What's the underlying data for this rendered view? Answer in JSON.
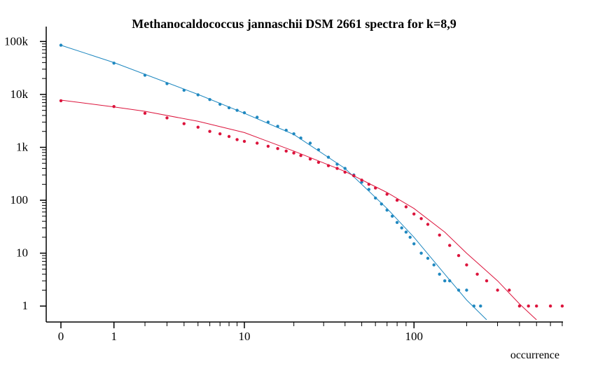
{
  "chart_data": {
    "type": "scatter",
    "title": "Methanocaldococcus jannaschii DSM 2661 spectra for k=8,9",
    "xlabel": "occurrence",
    "ylabel": "",
    "x_scale": "log(1+x)",
    "y_scale": "log",
    "xlim": [
      0,
      720
    ],
    "ylim": [
      0.5,
      180000
    ],
    "x_tick_labels": [
      "0",
      "1",
      "10",
      "100"
    ],
    "x_tick_values": [
      0,
      1,
      10,
      100
    ],
    "y_tick_labels": [
      "1",
      "10",
      "100",
      "1k",
      "10k",
      "100k"
    ],
    "y_tick_values": [
      1,
      10,
      100,
      1000,
      10000,
      100000
    ],
    "grid": false,
    "legend": "none",
    "series": [
      {
        "color": "#1f88c0",
        "points": [
          [
            0,
            85000
          ],
          [
            1,
            39000
          ],
          [
            2,
            23000
          ],
          [
            3,
            16000
          ],
          [
            4,
            12000
          ],
          [
            5,
            9800
          ],
          [
            6,
            8000
          ],
          [
            7,
            6500
          ],
          [
            8,
            5600
          ],
          [
            9,
            5000
          ],
          [
            10,
            4500
          ],
          [
            12,
            3700
          ],
          [
            14,
            3000
          ],
          [
            16,
            2500
          ],
          [
            18,
            2100
          ],
          [
            20,
            1800
          ],
          [
            22,
            1500
          ],
          [
            25,
            1200
          ],
          [
            28,
            900
          ],
          [
            32,
            650
          ],
          [
            36,
            480
          ],
          [
            40,
            400
          ],
          [
            45,
            300
          ],
          [
            50,
            220
          ],
          [
            55,
            160
          ],
          [
            60,
            110
          ],
          [
            65,
            85
          ],
          [
            70,
            65
          ],
          [
            75,
            50
          ],
          [
            80,
            38
          ],
          [
            85,
            30
          ],
          [
            90,
            25
          ],
          [
            95,
            20
          ],
          [
            100,
            15
          ],
          [
            110,
            10
          ],
          [
            120,
            8
          ],
          [
            130,
            6
          ],
          [
            140,
            4
          ],
          [
            150,
            3
          ],
          [
            160,
            3
          ],
          [
            180,
            2
          ],
          [
            200,
            2
          ],
          [
            220,
            1
          ],
          [
            240,
            1
          ]
        ],
        "fit": [
          [
            0,
            85000
          ],
          [
            1,
            40000
          ],
          [
            2,
            24000
          ],
          [
            5,
            10000
          ],
          [
            10,
            4400
          ],
          [
            20,
            1750
          ],
          [
            40,
            400
          ],
          [
            70,
            70
          ],
          [
            100,
            20
          ],
          [
            150,
            4
          ],
          [
            200,
            1.3
          ],
          [
            260,
            0.55
          ]
        ]
      },
      {
        "color": "#dc143c",
        "points": [
          [
            0,
            7600
          ],
          [
            1,
            5900
          ],
          [
            2,
            4400
          ],
          [
            3,
            3600
          ],
          [
            4,
            2800
          ],
          [
            5,
            2400
          ],
          [
            6,
            2000
          ],
          [
            7,
            1800
          ],
          [
            8,
            1600
          ],
          [
            9,
            1400
          ],
          [
            10,
            1300
          ],
          [
            12,
            1200
          ],
          [
            14,
            1050
          ],
          [
            16,
            950
          ],
          [
            18,
            850
          ],
          [
            20,
            780
          ],
          [
            22,
            700
          ],
          [
            25,
            600
          ],
          [
            28,
            520
          ],
          [
            32,
            450
          ],
          [
            36,
            400
          ],
          [
            40,
            340
          ],
          [
            45,
            290
          ],
          [
            50,
            240
          ],
          [
            55,
            200
          ],
          [
            60,
            170
          ],
          [
            70,
            130
          ],
          [
            80,
            100
          ],
          [
            90,
            75
          ],
          [
            100,
            55
          ],
          [
            110,
            45
          ],
          [
            120,
            35
          ],
          [
            140,
            22
          ],
          [
            160,
            14
          ],
          [
            180,
            9
          ],
          [
            200,
            6
          ],
          [
            230,
            4
          ],
          [
            260,
            3
          ],
          [
            300,
            2
          ],
          [
            350,
            2
          ],
          [
            400,
            1
          ],
          [
            450,
            1
          ],
          [
            500,
            1
          ],
          [
            600,
            1
          ],
          [
            700,
            1
          ]
        ],
        "fit": [
          [
            0,
            7800
          ],
          [
            1,
            5800
          ],
          [
            2,
            4800
          ],
          [
            5,
            3100
          ],
          [
            10,
            1900
          ],
          [
            20,
            850
          ],
          [
            40,
            350
          ],
          [
            70,
            140
          ],
          [
            100,
            70
          ],
          [
            150,
            25
          ],
          [
            200,
            10
          ],
          [
            300,
            3
          ],
          [
            400,
            1.1
          ],
          [
            500,
            0.55
          ]
        ]
      }
    ]
  }
}
